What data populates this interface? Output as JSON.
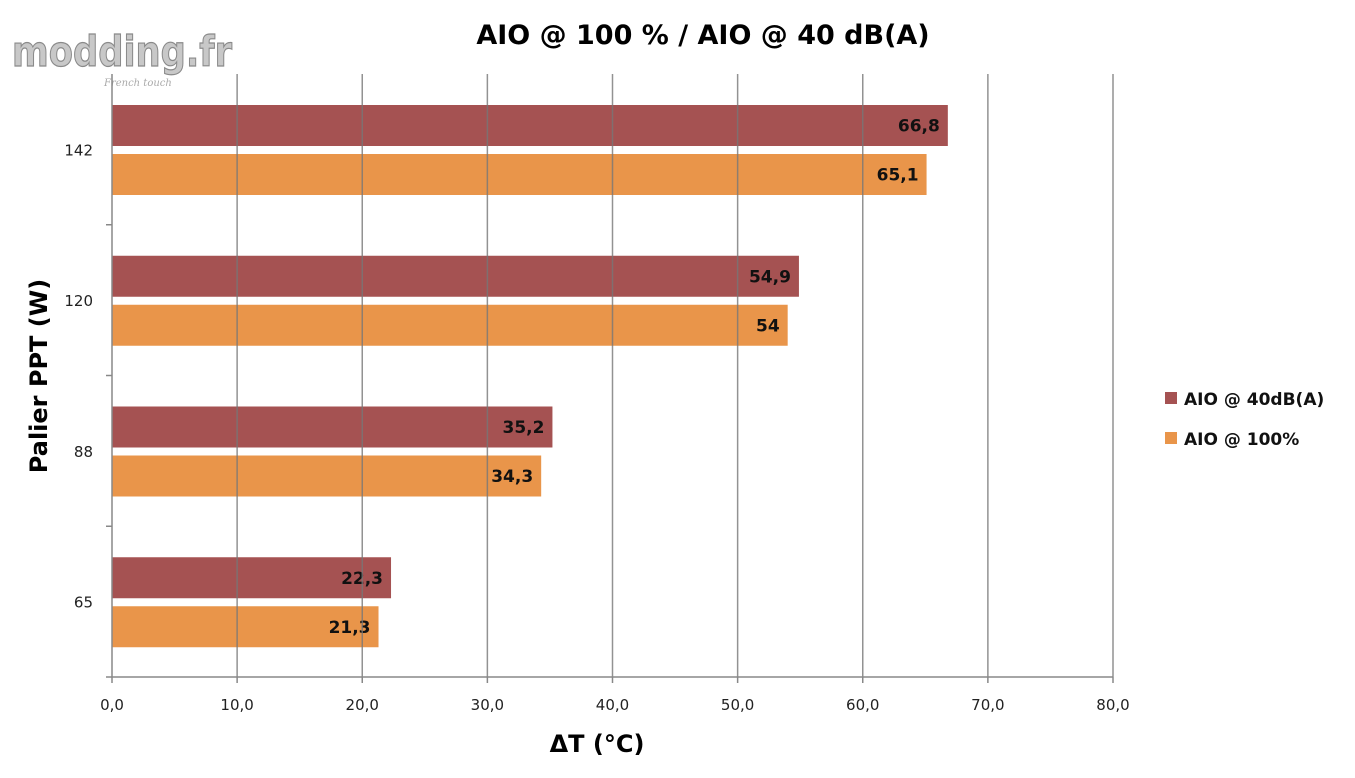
{
  "logo": {
    "text": "modding.fr",
    "tagline": "French touch"
  },
  "chart_data": {
    "type": "bar",
    "orientation": "horizontal",
    "title": "AIO @ 100 % / AIO @ 40 dB(A)",
    "xlabel": "ΔT (°C)",
    "ylabel": "Palier PPT (W)",
    "categories": [
      "142",
      "120",
      "88",
      "65"
    ],
    "series": [
      {
        "name": "AIO @ 40dB(A)",
        "color": "#a55252",
        "values": [
          66.8,
          54.9,
          35.2,
          22.3
        ],
        "labels": [
          "66,8",
          "54,9",
          "35,2",
          "22,3"
        ]
      },
      {
        "name": "AIO @ 100%",
        "color": "#e9954a",
        "values": [
          65.1,
          54,
          34.3,
          21.3
        ],
        "labels": [
          "65,1",
          "54",
          "34,3",
          "21,3"
        ]
      }
    ],
    "xlim": [
      0,
      80
    ],
    "xticks": [
      "0,0",
      "10,0",
      "20,0",
      "30,0",
      "40,0",
      "50,0",
      "60,0",
      "70,0",
      "80,0"
    ],
    "grid": true,
    "legend": "right"
  }
}
